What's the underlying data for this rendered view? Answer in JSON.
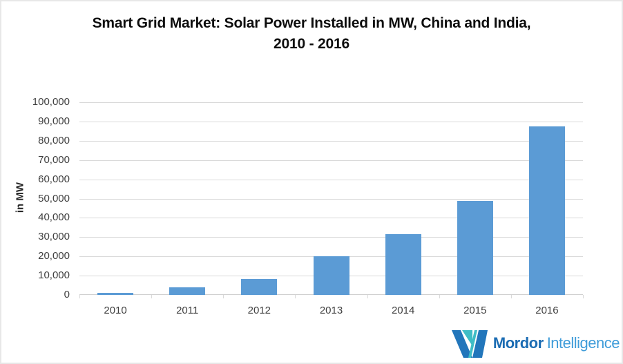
{
  "chart_data": {
    "type": "bar",
    "title": "Smart Grid Market: Solar Power Installed in MW, China and India, 2010 - 2016",
    "title_line1": "Smart Grid Market: Solar Power Installed in MW, China and India,",
    "title_line2": "2010 - 2016",
    "categories": [
      "2010",
      "2011",
      "2012",
      "2013",
      "2014",
      "2015",
      "2016"
    ],
    "values": [
      1000,
      4000,
      8300,
      20000,
      31500,
      48800,
      87500
    ],
    "series_name": "Solar Power Installed (MW), China and India",
    "xlabel": "",
    "ylabel": "in MW",
    "ylim": [
      0,
      100000
    ],
    "ytick_step": 10000,
    "ytick_labels": [
      "0",
      "10,000",
      "20,000",
      "30,000",
      "40,000",
      "50,000",
      "60,000",
      "70,000",
      "80,000",
      "90,000",
      "100,000"
    ],
    "grid": true,
    "legend": "none",
    "bar_color": "#5b9bd5",
    "gridline_color": "#d9d9d9"
  },
  "branding": {
    "logo_primary": "Mordor",
    "logo_secondary": "Intelligence",
    "logo_mark": "mordor-m-mark",
    "mark_color_blue": "#2276bb",
    "mark_color_teal": "#3fbdc6",
    "text_color_primary": "#1b6cb3",
    "text_color_secondary": "#3f9cd9"
  }
}
